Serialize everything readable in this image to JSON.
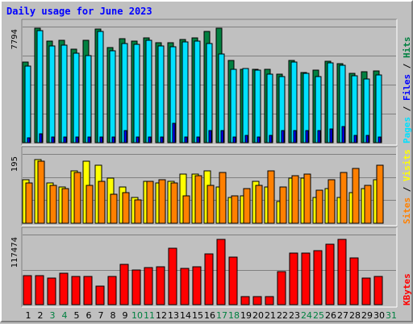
{
  "title": "Daily usage for June 2023",
  "colors": {
    "hits": "#008040",
    "files": "#00e0ff",
    "pages": "#0000ff",
    "visits": "#ffff00",
    "sites": "#ff8000",
    "kbytes": "#ff0000",
    "weekday_label": "#000000",
    "weekend_label": "#008040"
  },
  "chart_data": [
    {
      "type": "bar",
      "name": "hits-files-pages",
      "legend": [
        "Pages",
        "Files",
        "Hits"
      ],
      "max_label": "7794",
      "ymax": 7794,
      "categories": [
        "1",
        "2",
        "3",
        "4",
        "5",
        "6",
        "7",
        "8",
        "9",
        "10",
        "11",
        "12",
        "13",
        "14",
        "15",
        "16",
        "17",
        "18",
        "19",
        "20",
        "21",
        "22",
        "23",
        "24",
        "25",
        "26",
        "27",
        "28",
        "29",
        "30",
        "31"
      ],
      "weekend_days": [
        "3",
        "4",
        "10",
        "11",
        "17",
        "18",
        "24",
        "25",
        "31"
      ],
      "series": [
        {
          "name": "Hits",
          "values": [
            5400,
            7700,
            6800,
            6850,
            6300,
            6850,
            7650,
            6400,
            7000,
            6800,
            7050,
            6700,
            6700,
            6950,
            7050,
            7450,
            7700,
            5500,
            4950,
            4950,
            4900,
            4600,
            5500,
            4700,
            4850,
            5450,
            5300,
            4650,
            4750,
            4800,
            null
          ]
        },
        {
          "name": "Files",
          "values": [
            5150,
            7500,
            6500,
            6550,
            6000,
            5850,
            7450,
            6150,
            6650,
            6600,
            6900,
            6500,
            6450,
            6750,
            6800,
            6650,
            5950,
            4900,
            5000,
            4850,
            4600,
            4450,
            5400,
            4650,
            4450,
            5350,
            5200,
            4500,
            4300,
            4550,
            null
          ]
        },
        {
          "name": "Pages",
          "values": [
            300,
            600,
            400,
            400,
            400,
            400,
            400,
            400,
            800,
            400,
            400,
            400,
            1300,
            400,
            400,
            800,
            800,
            400,
            500,
            400,
            500,
            800,
            800,
            800,
            800,
            900,
            1100,
            500,
            500,
            400,
            null
          ]
        }
      ]
    },
    {
      "type": "bar",
      "name": "visits-sites",
      "legend": [
        "Sites",
        "Visits"
      ],
      "max_label": "195",
      "ymax": 195,
      "categories": [
        "1",
        "2",
        "3",
        "4",
        "5",
        "6",
        "7",
        "8",
        "9",
        "10",
        "11",
        "12",
        "13",
        "14",
        "15",
        "16",
        "17",
        "18",
        "19",
        "20",
        "21",
        "22",
        "23",
        "24",
        "25",
        "26",
        "27",
        "28",
        "29",
        "30",
        "31"
      ],
      "series": [
        {
          "name": "Visits",
          "values": [
            120,
            175,
            110,
            100,
            145,
            170,
            160,
            125,
            100,
            70,
            115,
            110,
            115,
            135,
            135,
            145,
            100,
            70,
            75,
            115,
            100,
            60,
            125,
            125,
            70,
            95,
            70,
            85,
            95,
            120,
            null
          ]
        },
        {
          "name": "Sites",
          "values": [
            110,
            170,
            105,
            95,
            140,
            105,
            115,
            80,
            85,
            65,
            115,
            120,
            110,
            75,
            130,
            105,
            140,
            75,
            95,
            105,
            145,
            100,
            130,
            135,
            90,
            120,
            140,
            150,
            105,
            160,
            null
          ]
        }
      ]
    },
    {
      "type": "bar",
      "name": "kbytes",
      "legend": [
        "KBytes"
      ],
      "max_label": "117474",
      "ymax": 117474,
      "categories": [
        "1",
        "2",
        "3",
        "4",
        "5",
        "6",
        "7",
        "8",
        "9",
        "10",
        "11",
        "12",
        "13",
        "14",
        "15",
        "16",
        "17",
        "18",
        "19",
        "20",
        "21",
        "22",
        "23",
        "24",
        "25",
        "26",
        "27",
        "28",
        "29",
        "30",
        "31"
      ],
      "series": [
        {
          "name": "KBytes",
          "values": [
            48000,
            48000,
            45000,
            52000,
            47000,
            47000,
            31000,
            47000,
            68000,
            58000,
            62000,
            63000,
            94000,
            61000,
            64000,
            85000,
            109000,
            79000,
            14000,
            14000,
            14000,
            55000,
            87000,
            86000,
            90000,
            101000,
            110000,
            78000,
            45000,
            47000,
            null
          ]
        }
      ]
    }
  ]
}
